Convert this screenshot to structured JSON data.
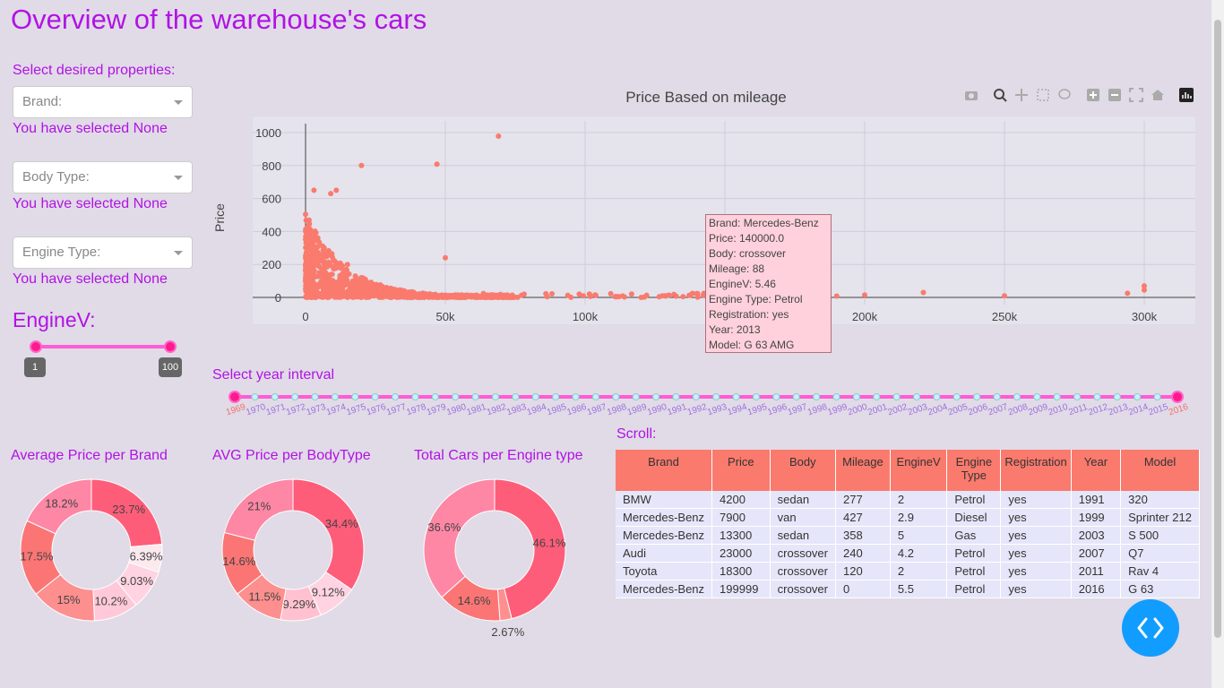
{
  "page_title": "Overview of the warehouse's cars",
  "filters": {
    "heading": "Select desired properties:",
    "brand_placeholder": "Brand:",
    "body_placeholder": "Body Type:",
    "engine_placeholder": "Engine Type:",
    "brand_note": "You have selected None",
    "body_note": "You have selected None",
    "engine_note": "You have selected None"
  },
  "enginev": {
    "title": "EngineV:",
    "min_label": "1",
    "max_label": "100",
    "min": 1,
    "max": 100
  },
  "scatter": {
    "title": "Price Based on mileage",
    "ylabel": "Price",
    "x_ticks": [
      "0",
      "50k",
      "100k",
      "150k",
      "200k",
      "250k",
      "300k"
    ],
    "y_ticks": [
      "0",
      "200",
      "400",
      "600",
      "800",
      "1000"
    ],
    "tooltip": [
      "Brand: Mercedes-Benz",
      "Price: 140000.0",
      "Body: crossover",
      "Mileage: 88",
      "EngineV: 5.46",
      "Engine Type: Petrol",
      "Registration: yes",
      "Year: 2013",
      "Model: G 63 AMG"
    ],
    "marker_color": "#fa7a6d"
  },
  "year_slider": {
    "title": "Select year interval",
    "start": 1969,
    "end": 2016,
    "years": [
      "1969",
      "1970",
      "1971",
      "1972",
      "1973",
      "1974",
      "1975",
      "1976",
      "1977",
      "1978",
      "1979",
      "1980",
      "1981",
      "1982",
      "1983",
      "1984",
      "1985",
      "1986",
      "1987",
      "1988",
      "1989",
      "1990",
      "1991",
      "1992",
      "1993",
      "1994",
      "1995",
      "1996",
      "1997",
      "1998",
      "1999",
      "2000",
      "2001",
      "2002",
      "2003",
      "2004",
      "2005",
      "2006",
      "2007",
      "2008",
      "2009",
      "2010",
      "2011",
      "2012",
      "2013",
      "2014",
      "2015",
      "2016"
    ]
  },
  "donuts": {
    "brand": {
      "title": "Average Price per Brand",
      "labels": [
        "23.7%",
        "6.39%",
        "9.03%",
        "10.2%",
        "15%",
        "17.5%",
        "18.2%"
      ]
    },
    "body": {
      "title": "AVG Price per BodyType",
      "labels": [
        "34.4%",
        "9.12%",
        "9.29%",
        "11.5%",
        "14.6%",
        "21%"
      ]
    },
    "engine": {
      "title": "Total Cars per Engine type",
      "labels": [
        "46.1%",
        "2.67%",
        "14.6%",
        "36.6%"
      ]
    }
  },
  "table": {
    "title": "Scroll:",
    "headers": [
      "Brand",
      "Price",
      "Body",
      "Mileage",
      "EngineV",
      "Engine Type",
      "Registration",
      "Year",
      "Model"
    ],
    "rows": [
      [
        "BMW",
        "4200",
        "sedan",
        "277",
        "2",
        "Petrol",
        "yes",
        "1991",
        "320"
      ],
      [
        "Mercedes-Benz",
        "7900",
        "van",
        "427",
        "2.9",
        "Diesel",
        "yes",
        "1999",
        "Sprinter 212"
      ],
      [
        "Mercedes-Benz",
        "13300",
        "sedan",
        "358",
        "5",
        "Gas",
        "yes",
        "2003",
        "S 500"
      ],
      [
        "Audi",
        "23000",
        "crossover",
        "240",
        "4.2",
        "Petrol",
        "yes",
        "2007",
        "Q7"
      ],
      [
        "Toyota",
        "18300",
        "crossover",
        "120",
        "2",
        "Petrol",
        "yes",
        "2011",
        "Rav 4"
      ],
      [
        "Mercedes-Benz",
        "199999",
        "crossover",
        "0",
        "5.5",
        "Petrol",
        "yes",
        "2016",
        "G 63"
      ]
    ]
  },
  "chart_data": [
    {
      "type": "scatter",
      "title": "Price Based on mileage",
      "xlabel": "",
      "ylabel": "Price",
      "xlim": [
        -10,
        317
      ],
      "ylim": [
        -10,
        1050
      ],
      "grid": true,
      "color": "#fa7a6d",
      "x_scale_note": "mileage in thousands",
      "points": [
        [
          20,
          800
        ],
        [
          47,
          808
        ],
        [
          69,
          978
        ],
        [
          3,
          650
        ],
        [
          9,
          630
        ],
        [
          11,
          650
        ],
        [
          15,
          200
        ],
        [
          50,
          240
        ],
        [
          155,
          60
        ],
        [
          158,
          90
        ],
        [
          221,
          30
        ],
        [
          294,
          25
        ],
        [
          300,
          70
        ],
        [
          300,
          45
        ],
        [
          200,
          15
        ],
        [
          250,
          10
        ],
        [
          190,
          8
        ],
        [
          180,
          12
        ]
      ]
    },
    {
      "type": "pie",
      "title": "Average Price per Brand",
      "values": [
        23.7,
        6.39,
        9.03,
        10.2,
        15,
        17.5,
        18.2
      ],
      "colors": [
        "#fe5d7a",
        "#fbe9ee",
        "#ffd3e1",
        "#ffc9d9",
        "#fd8f8f",
        "#fb7575",
        "#fe87a5"
      ]
    },
    {
      "type": "pie",
      "title": "AVG Price per BodyType",
      "values": [
        34.4,
        9.12,
        9.29,
        11.5,
        14.6,
        21
      ],
      "colors": [
        "#fe5d7a",
        "#ffd3e1",
        "#ffc1cf",
        "#fd8f8f",
        "#fb7575",
        "#fe87a5"
      ]
    },
    {
      "type": "pie",
      "title": "Total Cars per Engine type",
      "values": [
        46.1,
        2.67,
        14.6,
        36.6
      ],
      "colors": [
        "#fe5d7a",
        "#fd8f8f",
        "#fb7575",
        "#fe87a5"
      ]
    }
  ]
}
